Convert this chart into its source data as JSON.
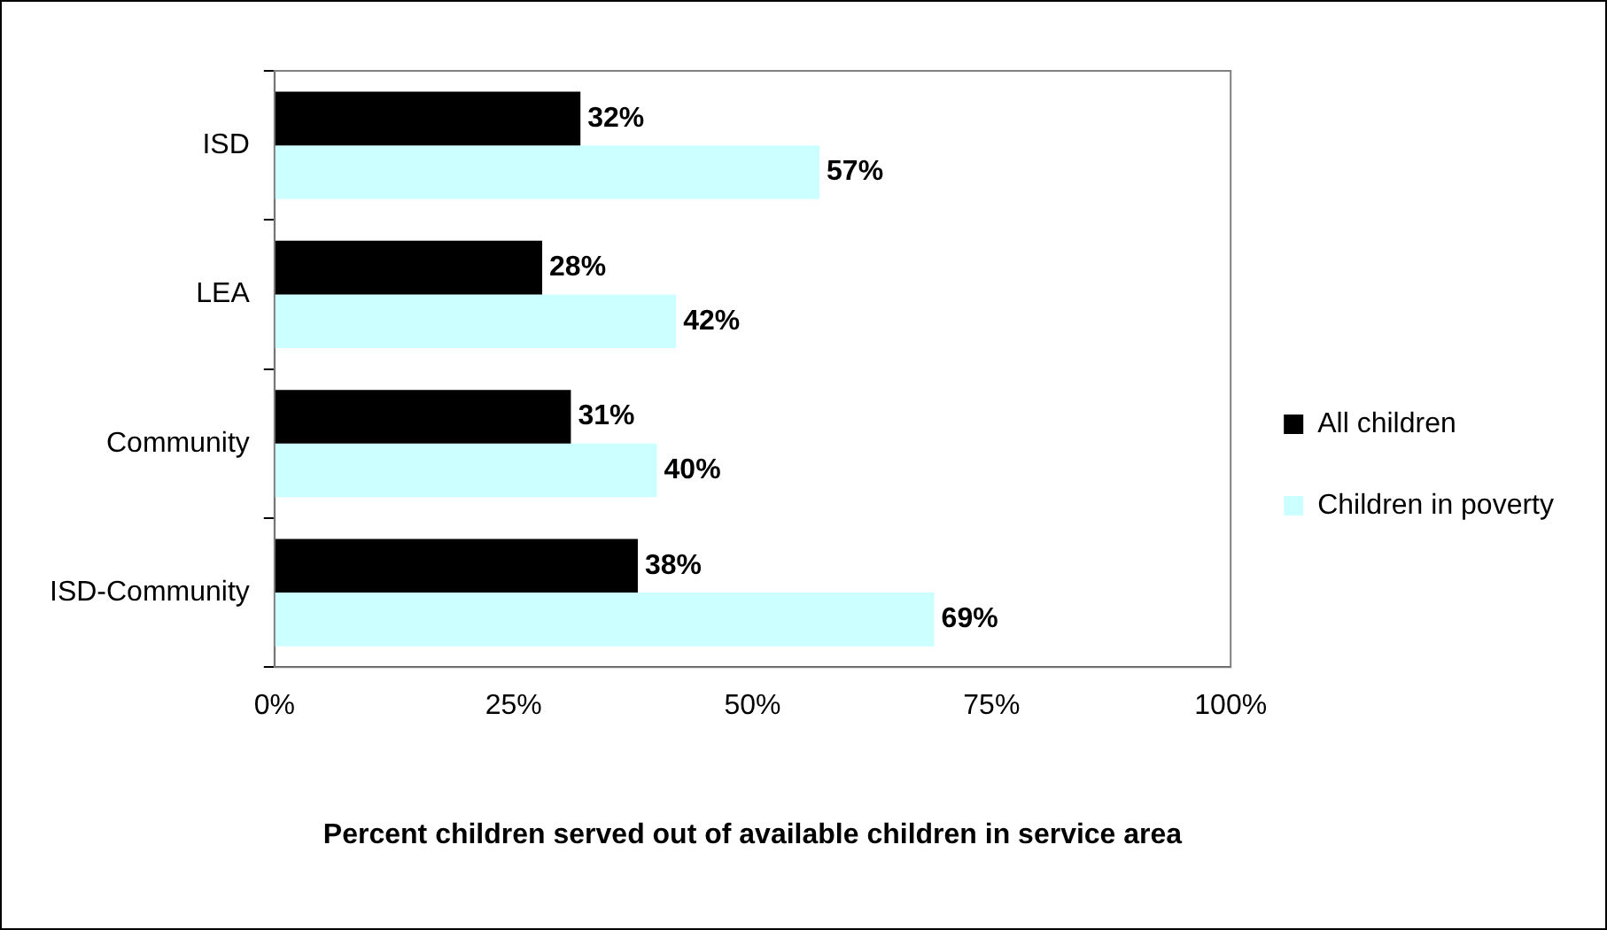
{
  "chart_data": {
    "type": "bar",
    "orientation": "horizontal",
    "xlabel": "Percent children served out of available children in service area",
    "categories": [
      "ISD",
      "LEA",
      "Community",
      "ISD-Community"
    ],
    "series": [
      {
        "name": "All children",
        "color": "#000000",
        "values": [
          32,
          28,
          31,
          38
        ],
        "value_labels": [
          "32%",
          "28%",
          "31%",
          "38%"
        ]
      },
      {
        "name": "Children in poverty",
        "color": "#ccffff",
        "values": [
          57,
          42,
          40,
          69
        ],
        "value_labels": [
          "57%",
          "42%",
          "40%",
          "69%"
        ]
      }
    ],
    "xlim": [
      0,
      100
    ],
    "xticks": [
      {
        "value": 0,
        "label": "0%"
      },
      {
        "value": 25,
        "label": "25%"
      },
      {
        "value": 50,
        "label": "50%"
      },
      {
        "value": 75,
        "label": "75%"
      },
      {
        "value": 100,
        "label": "100%"
      }
    ],
    "grid": false,
    "legend": "right"
  }
}
